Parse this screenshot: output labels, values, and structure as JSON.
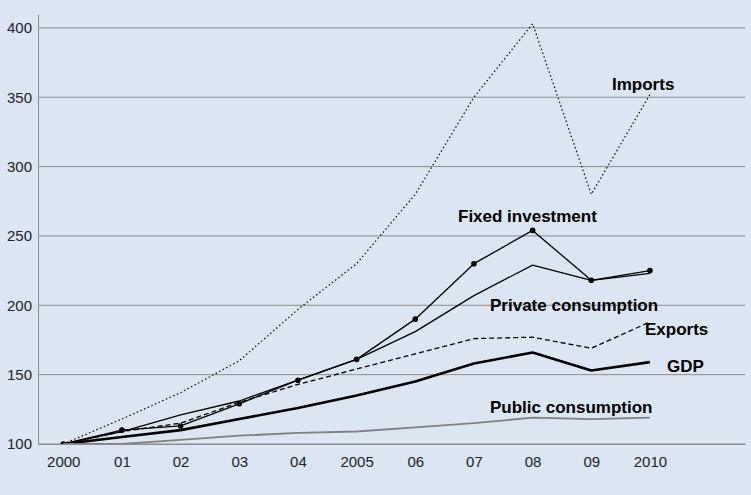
{
  "chart_data": {
    "type": "line",
    "x": [
      2000,
      2001,
      2002,
      2003,
      2004,
      2005,
      2006,
      2007,
      2008,
      2009,
      2010
    ],
    "xlim": [
      1999.57,
      2011.62
    ],
    "xticks": [
      2000,
      {
        "value": 2001,
        "label": "01"
      },
      {
        "value": 2002,
        "label": "02"
      },
      {
        "value": 2003,
        "label": "03"
      },
      {
        "value": 2004,
        "label": "04"
      },
      2005,
      {
        "value": 2006,
        "label": "06"
      },
      {
        "value": 2007,
        "label": "07"
      },
      {
        "value": 2008,
        "label": "08"
      },
      {
        "value": 2009,
        "label": "09"
      },
      2010
    ],
    "ylim": [
      100,
      410
    ],
    "yticks": [
      100,
      150,
      200,
      250,
      300,
      350,
      400
    ],
    "grid": true,
    "series": [
      {
        "name": "Imports",
        "color": "#000000",
        "line_style": "dotted",
        "values": [
          100,
          118,
          137,
          160,
          197,
          230,
          280,
          350,
          403,
          280,
          352
        ]
      },
      {
        "name": "Fixed investment",
        "color": "#000000",
        "line_style": "solid",
        "marker": "circle",
        "values": [
          100,
          110,
          113,
          129,
          146,
          161,
          190,
          230,
          254,
          218,
          225
        ]
      },
      {
        "name": "Private consumption",
        "color": "#000000",
        "line_style": "solid",
        "values": [
          100,
          109,
          121,
          131,
          146,
          161,
          181,
          207,
          229,
          218,
          223
        ]
      },
      {
        "name": "Exports",
        "color": "#000000",
        "line_style": "dashed",
        "values": [
          100,
          109,
          115,
          130,
          143,
          154,
          165,
          176,
          177,
          169,
          188
        ]
      },
      {
        "name": "GDP",
        "color": "#000000",
        "line_style": "solid",
        "values": [
          100,
          105,
          110,
          118,
          126,
          135,
          145,
          158,
          166,
          153,
          159
        ]
      },
      {
        "name": "Public consumption",
        "color": "#808080",
        "line_style": "solid",
        "values": [
          100,
          100,
          103,
          106,
          108,
          109,
          112,
          115,
          119,
          118,
          119
        ]
      }
    ]
  }
}
